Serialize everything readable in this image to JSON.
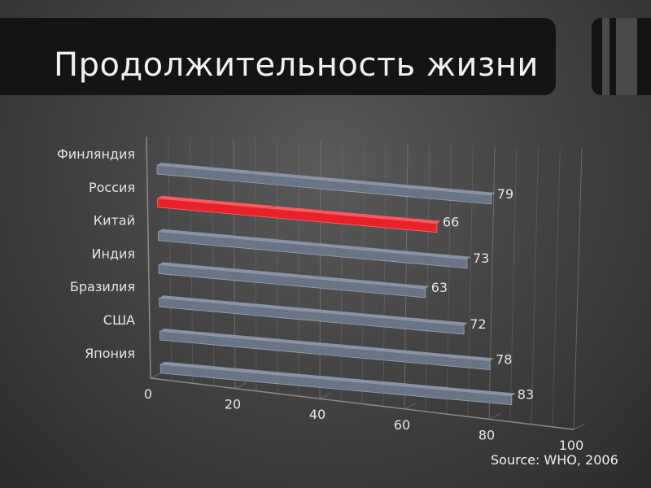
{
  "title": "Продолжительность жизни",
  "source": "Source: WHO, 2006",
  "colors": {
    "bar": "#6b7485",
    "highlight": "#e8222a",
    "text": "#e6e6e6",
    "grid": "#8a8a8a"
  },
  "chart_data": {
    "type": "bar",
    "orientation": "horizontal",
    "categories": [
      "Финляндия",
      "Россия",
      "Китай",
      "Индия",
      "Бразилия",
      "США",
      "Япония"
    ],
    "values": [
      79,
      66,
      73,
      63,
      72,
      78,
      83
    ],
    "highlight": "Россия",
    "xticks": [
      0,
      20,
      40,
      60,
      80,
      100
    ],
    "xlim": [
      0,
      100
    ],
    "grid": true
  }
}
